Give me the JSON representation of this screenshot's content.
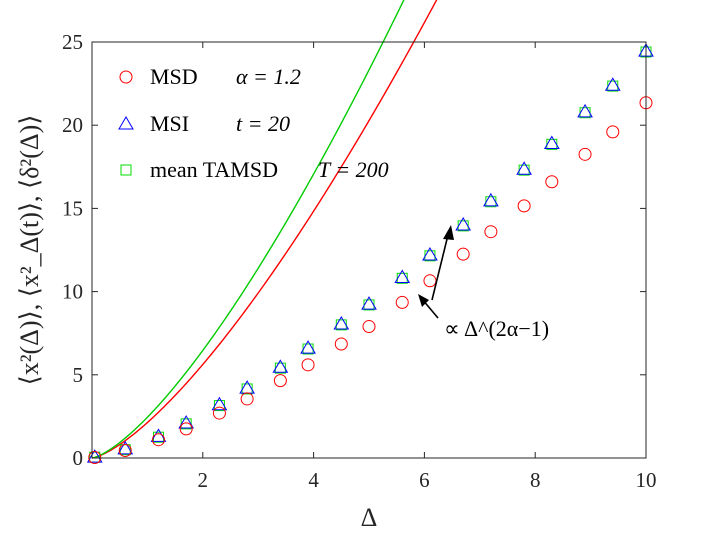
{
  "chart_data": {
    "type": "scatter",
    "xlabel": "Δ",
    "ylabel": "⟨x²(Δ)⟩, ⟨x²_Δ(t)⟩, ⟨δ²(Δ)⟩",
    "xlim": [
      0,
      10
    ],
    "ylim": [
      0,
      25
    ],
    "x_ticks": [
      "2",
      "4",
      "6",
      "8",
      "10"
    ],
    "y_ticks": [
      "0",
      "5",
      "10",
      "15",
      "20",
      "25"
    ],
    "grid": false,
    "legend_position": "top-left",
    "legend": [
      {
        "label": "MSD",
        "param": "α = 1.2",
        "marker": "circle",
        "color": "#ff0000"
      },
      {
        "label": "MSI",
        "param": "t = 20",
        "marker": "triangle",
        "color": "#0000ff"
      },
      {
        "label": "mean TAMSD",
        "param": "T = 200",
        "marker": "square",
        "color": "#00dd00"
      }
    ],
    "annotation": "∝ Δ^(2α−1)",
    "series": [
      {
        "name": "MSD α = 1.2",
        "marker": "circle",
        "color": "#ff0000",
        "x": [
          0.05,
          0.6,
          1.2,
          1.7,
          2.3,
          2.8,
          3.4,
          3.9,
          4.5,
          5.0,
          5.6,
          6.1,
          6.7,
          7.2,
          7.8,
          8.3,
          8.9,
          9.4,
          10.0
        ],
        "y": [
          0.03,
          0.45,
          1.1,
          1.75,
          2.7,
          3.55,
          4.65,
          5.6,
          6.85,
          7.9,
          9.35,
          10.65,
          12.25,
          13.6,
          15.15,
          16.6,
          18.25,
          19.6,
          21.35
        ]
      },
      {
        "name": "MSI t = 20",
        "marker": "triangle",
        "color": "#0000ff",
        "x": [
          0.05,
          0.6,
          1.2,
          1.7,
          2.3,
          2.8,
          3.4,
          3.9,
          4.5,
          5.0,
          5.6,
          6.1,
          6.7,
          7.2,
          7.8,
          8.3,
          8.9,
          9.4,
          10.0
        ],
        "y": [
          0.05,
          0.55,
          1.3,
          2.1,
          3.2,
          4.2,
          5.45,
          6.6,
          8.05,
          9.25,
          10.85,
          12.2,
          14.0,
          15.45,
          17.35,
          18.9,
          20.8,
          22.4,
          24.45
        ]
      },
      {
        "name": "mean TAMSD T = 200",
        "marker": "square",
        "color": "#00dd00",
        "x": [
          0.05,
          0.6,
          1.2,
          1.7,
          2.3,
          2.8,
          3.4,
          3.9,
          4.5,
          5.0,
          5.6,
          6.1,
          6.7,
          7.2,
          7.8,
          8.3,
          8.9,
          9.4,
          10.0
        ],
        "y": [
          0.05,
          0.5,
          1.25,
          2.05,
          3.15,
          4.15,
          5.4,
          6.55,
          8.0,
          9.2,
          10.8,
          12.15,
          13.95,
          15.4,
          17.3,
          18.85,
          20.75,
          22.35,
          24.4
        ]
      }
    ],
    "fit_lines": [
      {
        "color": "#ff0000",
        "coefficient": 2.13,
        "exponent": 1.4
      },
      {
        "color": "#00cc00",
        "coefficient": 2.45,
        "exponent": 1.4
      }
    ]
  }
}
